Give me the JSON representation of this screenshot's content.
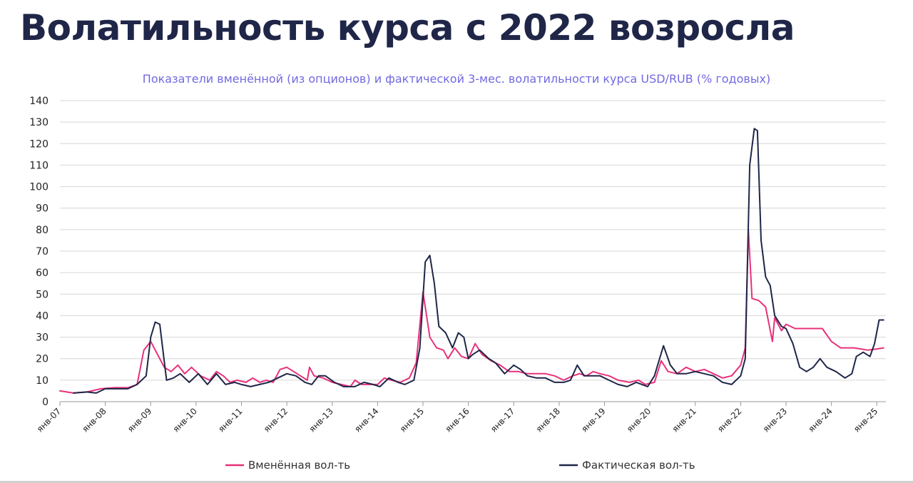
{
  "page": {
    "title": "Волатильность курса с 2022 возросла"
  },
  "chart_data": {
    "type": "line",
    "title": "Показатели вменённой (из опционов) и фактической 3-мес. волатильности курса USD/RUB (% годовых)",
    "xlabel": "",
    "ylabel": "",
    "ylim": [
      0,
      140
    ],
    "yticks": [
      0,
      10,
      20,
      30,
      40,
      50,
      60,
      70,
      80,
      90,
      100,
      110,
      120,
      130,
      140
    ],
    "xlim": [
      2007.0,
      2025.2
    ],
    "xticks": [
      {
        "x": 2007,
        "label": "янв-07"
      },
      {
        "x": 2008,
        "label": "янв-08"
      },
      {
        "x": 2009,
        "label": "янв-09"
      },
      {
        "x": 2010,
        "label": "янв-10"
      },
      {
        "x": 2011,
        "label": "янв-11"
      },
      {
        "x": 2012,
        "label": "янв-12"
      },
      {
        "x": 2013,
        "label": "янв-13"
      },
      {
        "x": 2014,
        "label": "янв-14"
      },
      {
        "x": 2015,
        "label": "янв-15"
      },
      {
        "x": 2016,
        "label": "янв-16"
      },
      {
        "x": 2017,
        "label": "янв-17"
      },
      {
        "x": 2018,
        "label": "янв-18"
      },
      {
        "x": 2019,
        "label": "янв-19"
      },
      {
        "x": 2020,
        "label": "янв-20"
      },
      {
        "x": 2021,
        "label": "янв-21"
      },
      {
        "x": 2022,
        "label": "янв-22"
      },
      {
        "x": 2023,
        "label": "янв-23"
      },
      {
        "x": 2024,
        "label": "янв-24"
      },
      {
        "x": 2025,
        "label": "янв-25"
      }
    ],
    "grid": true,
    "legend_position": "bottom",
    "series": [
      {
        "name": "Вменённая вол-ть",
        "color": "#e8317a",
        "points": [
          [
            2007.0,
            5
          ],
          [
            2007.3,
            4
          ],
          [
            2007.6,
            4.5
          ],
          [
            2007.9,
            6
          ],
          [
            2008.2,
            6.5
          ],
          [
            2008.5,
            6.5
          ],
          [
            2008.7,
            8
          ],
          [
            2008.85,
            24
          ],
          [
            2009.0,
            28
          ],
          [
            2009.15,
            22
          ],
          [
            2009.3,
            16
          ],
          [
            2009.45,
            14
          ],
          [
            2009.6,
            17
          ],
          [
            2009.75,
            13
          ],
          [
            2009.9,
            16
          ],
          [
            2010.1,
            12
          ],
          [
            2010.3,
            10
          ],
          [
            2010.45,
            14
          ],
          [
            2010.6,
            12
          ],
          [
            2010.75,
            9
          ],
          [
            2010.9,
            10
          ],
          [
            2011.1,
            9
          ],
          [
            2011.25,
            11
          ],
          [
            2011.4,
            9
          ],
          [
            2011.55,
            10
          ],
          [
            2011.7,
            9
          ],
          [
            2011.85,
            15
          ],
          [
            2012.0,
            16
          ],
          [
            2012.15,
            14
          ],
          [
            2012.3,
            12
          ],
          [
            2012.45,
            10
          ],
          [
            2012.5,
            16
          ],
          [
            2012.6,
            12
          ],
          [
            2012.8,
            11
          ],
          [
            2013.0,
            9
          ],
          [
            2013.2,
            8
          ],
          [
            2013.4,
            7
          ],
          [
            2013.5,
            10
          ],
          [
            2013.65,
            8
          ],
          [
            2013.85,
            8
          ],
          [
            2014.0,
            8
          ],
          [
            2014.15,
            11
          ],
          [
            2014.3,
            10
          ],
          [
            2014.5,
            9
          ],
          [
            2014.7,
            11
          ],
          [
            2014.85,
            18
          ],
          [
            2015.0,
            51
          ],
          [
            2015.15,
            30
          ],
          [
            2015.3,
            25
          ],
          [
            2015.45,
            24
          ],
          [
            2015.55,
            20
          ],
          [
            2015.7,
            25
          ],
          [
            2015.85,
            21
          ],
          [
            2016.0,
            20
          ],
          [
            2016.15,
            27
          ],
          [
            2016.3,
            22
          ],
          [
            2016.5,
            19
          ],
          [
            2016.7,
            17
          ],
          [
            2016.9,
            14
          ],
          [
            2017.1,
            14
          ],
          [
            2017.3,
            13
          ],
          [
            2017.5,
            13
          ],
          [
            2017.7,
            13
          ],
          [
            2017.9,
            12
          ],
          [
            2018.1,
            10
          ],
          [
            2018.3,
            12
          ],
          [
            2018.45,
            13
          ],
          [
            2018.6,
            12
          ],
          [
            2018.75,
            14
          ],
          [
            2018.9,
            13
          ],
          [
            2019.1,
            12
          ],
          [
            2019.3,
            10
          ],
          [
            2019.55,
            9
          ],
          [
            2019.75,
            10
          ],
          [
            2019.9,
            8
          ],
          [
            2020.1,
            9
          ],
          [
            2020.25,
            19
          ],
          [
            2020.4,
            14
          ],
          [
            2020.6,
            13
          ],
          [
            2020.8,
            16
          ],
          [
            2021.0,
            14
          ],
          [
            2021.2,
            15
          ],
          [
            2021.4,
            13
          ],
          [
            2021.6,
            11
          ],
          [
            2021.8,
            12
          ],
          [
            2022.0,
            17
          ],
          [
            2022.1,
            25
          ],
          [
            2022.17,
            80
          ],
          [
            2022.25,
            48
          ],
          [
            2022.4,
            47
          ],
          [
            2022.55,
            44
          ],
          [
            2022.7,
            28
          ],
          [
            2022.75,
            39
          ],
          [
            2022.9,
            33
          ],
          [
            2023.0,
            36
          ],
          [
            2023.2,
            34
          ],
          [
            2023.5,
            34
          ],
          [
            2023.8,
            34
          ],
          [
            2024.0,
            28
          ],
          [
            2024.2,
            25
          ],
          [
            2024.5,
            25
          ],
          [
            2024.8,
            24
          ],
          [
            2025.0,
            24.5
          ],
          [
            2025.15,
            25
          ]
        ]
      },
      {
        "name": "Фактическая вол-ть",
        "color": "#1f2648",
        "points": [
          [
            2007.3,
            4
          ],
          [
            2007.6,
            4.5
          ],
          [
            2007.8,
            4
          ],
          [
            2008.0,
            6
          ],
          [
            2008.3,
            6
          ],
          [
            2008.5,
            6
          ],
          [
            2008.7,
            8
          ],
          [
            2008.9,
            12
          ],
          [
            2009.0,
            30
          ],
          [
            2009.1,
            37
          ],
          [
            2009.2,
            36
          ],
          [
            2009.35,
            10
          ],
          [
            2009.5,
            11
          ],
          [
            2009.65,
            13
          ],
          [
            2009.85,
            9
          ],
          [
            2010.05,
            13
          ],
          [
            2010.25,
            8
          ],
          [
            2010.45,
            13
          ],
          [
            2010.65,
            8
          ],
          [
            2010.85,
            9
          ],
          [
            2011.0,
            8
          ],
          [
            2011.2,
            7
          ],
          [
            2011.4,
            8
          ],
          [
            2011.6,
            9
          ],
          [
            2011.8,
            11
          ],
          [
            2012.0,
            13
          ],
          [
            2012.2,
            12
          ],
          [
            2012.4,
            9
          ],
          [
            2012.55,
            8
          ],
          [
            2012.7,
            12
          ],
          [
            2012.85,
            12
          ],
          [
            2013.05,
            9
          ],
          [
            2013.25,
            7
          ],
          [
            2013.5,
            7
          ],
          [
            2013.7,
            9
          ],
          [
            2013.9,
            8
          ],
          [
            2014.05,
            7
          ],
          [
            2014.25,
            11
          ],
          [
            2014.45,
            9
          ],
          [
            2014.6,
            8
          ],
          [
            2014.8,
            10
          ],
          [
            2014.93,
            25
          ],
          [
            2015.05,
            65
          ],
          [
            2015.15,
            68
          ],
          [
            2015.25,
            55
          ],
          [
            2015.35,
            35
          ],
          [
            2015.5,
            32
          ],
          [
            2015.65,
            25
          ],
          [
            2015.78,
            32
          ],
          [
            2015.9,
            30
          ],
          [
            2016.0,
            20
          ],
          [
            2016.1,
            22
          ],
          [
            2016.25,
            24
          ],
          [
            2016.45,
            20
          ],
          [
            2016.6,
            18
          ],
          [
            2016.8,
            13
          ],
          [
            2017.0,
            17
          ],
          [
            2017.15,
            15
          ],
          [
            2017.3,
            12
          ],
          [
            2017.5,
            11
          ],
          [
            2017.7,
            11
          ],
          [
            2017.9,
            9
          ],
          [
            2018.1,
            9
          ],
          [
            2018.25,
            10
          ],
          [
            2018.4,
            17
          ],
          [
            2018.55,
            12
          ],
          [
            2018.7,
            12
          ],
          [
            2018.9,
            12
          ],
          [
            2019.1,
            10
          ],
          [
            2019.3,
            8
          ],
          [
            2019.5,
            7
          ],
          [
            2019.7,
            9
          ],
          [
            2019.95,
            7
          ],
          [
            2020.1,
            12
          ],
          [
            2020.3,
            26
          ],
          [
            2020.45,
            17
          ],
          [
            2020.6,
            13
          ],
          [
            2020.8,
            13
          ],
          [
            2021.0,
            14
          ],
          [
            2021.2,
            13
          ],
          [
            2021.4,
            12
          ],
          [
            2021.6,
            9
          ],
          [
            2021.8,
            8
          ],
          [
            2022.0,
            12
          ],
          [
            2022.1,
            20
          ],
          [
            2022.2,
            110
          ],
          [
            2022.3,
            127
          ],
          [
            2022.37,
            126
          ],
          [
            2022.45,
            75
          ],
          [
            2022.55,
            58
          ],
          [
            2022.65,
            54
          ],
          [
            2022.75,
            40
          ],
          [
            2022.9,
            35
          ],
          [
            2023.0,
            34
          ],
          [
            2023.15,
            27
          ],
          [
            2023.3,
            16
          ],
          [
            2023.45,
            14
          ],
          [
            2023.6,
            16
          ],
          [
            2023.75,
            20
          ],
          [
            2023.9,
            16
          ],
          [
            2024.1,
            14
          ],
          [
            2024.3,
            11
          ],
          [
            2024.45,
            13
          ],
          [
            2024.55,
            21
          ],
          [
            2024.7,
            23
          ],
          [
            2024.85,
            21
          ],
          [
            2024.95,
            27
          ],
          [
            2025.05,
            38
          ],
          [
            2025.15,
            38
          ]
        ]
      }
    ]
  }
}
